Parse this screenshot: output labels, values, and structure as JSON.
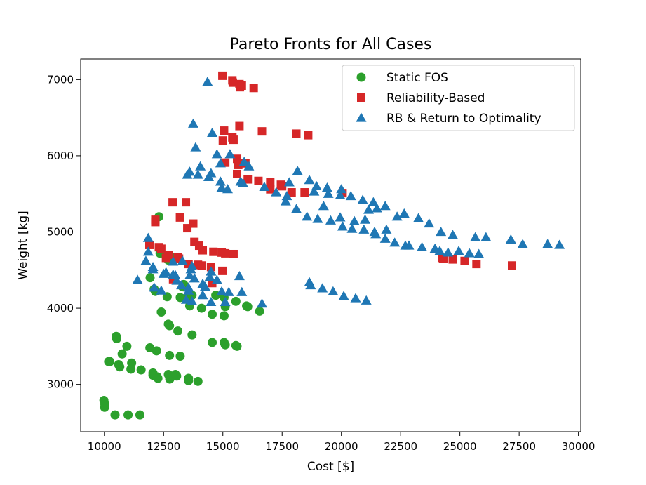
{
  "chart_data": {
    "type": "scatter",
    "title": "Pareto Fronts for All Cases",
    "xlabel": "Cost [$]",
    "ylabel": "Weight [kg]",
    "xlim": [
      9000,
      30100
    ],
    "ylim": [
      2380,
      7270
    ],
    "xticks": [
      10000,
      12500,
      15000,
      17500,
      20000,
      22500,
      25000,
      27500,
      30000
    ],
    "yticks": [
      3000,
      4000,
      5000,
      6000,
      7000
    ],
    "grid": false,
    "legend_position": "top-right",
    "series": [
      {
        "name": "Static FOS",
        "marker": "circle",
        "color": "#2ca02c",
        "points": [
          [
            9980,
            2790
          ],
          [
            10010,
            2700
          ],
          [
            10020,
            2740
          ],
          [
            10450,
            2600
          ],
          [
            11000,
            2600
          ],
          [
            11500,
            2600
          ],
          [
            10500,
            3630
          ],
          [
            10520,
            3600
          ],
          [
            10950,
            3500
          ],
          [
            10230,
            3300
          ],
          [
            10180,
            3300
          ],
          [
            10600,
            3260
          ],
          [
            10650,
            3230
          ],
          [
            10750,
            3400
          ],
          [
            11150,
            3280
          ],
          [
            11120,
            3200
          ],
          [
            11550,
            3190
          ],
          [
            11920,
            3480
          ],
          [
            12050,
            3120
          ],
          [
            12050,
            3150
          ],
          [
            12230,
            3100
          ],
          [
            12260,
            3080
          ],
          [
            12200,
            3440
          ],
          [
            12700,
            3130
          ],
          [
            12750,
            3380
          ],
          [
            12800,
            3100
          ],
          [
            12760,
            3070
          ],
          [
            13000,
            3130
          ],
          [
            13050,
            3110
          ],
          [
            13200,
            3370
          ],
          [
            13550,
            3080
          ],
          [
            13550,
            3050
          ],
          [
            13950,
            3040
          ],
          [
            12400,
            3950
          ],
          [
            12700,
            3790
          ],
          [
            12750,
            3770
          ],
          [
            13100,
            3700
          ],
          [
            13700,
            3650
          ],
          [
            11930,
            4400
          ],
          [
            12100,
            4250
          ],
          [
            12150,
            4220
          ],
          [
            12650,
            4150
          ],
          [
            12350,
            4720
          ],
          [
            12650,
            4650
          ],
          [
            12700,
            4630
          ],
          [
            12800,
            4680
          ],
          [
            13100,
            4660
          ],
          [
            13350,
            4310
          ],
          [
            13300,
            4280
          ],
          [
            13600,
            4030
          ],
          [
            13700,
            4170
          ],
          [
            13200,
            4140
          ],
          [
            13450,
            4130
          ],
          [
            14100,
            4000
          ],
          [
            14550,
            3920
          ],
          [
            15050,
            3900
          ],
          [
            14700,
            4170
          ],
          [
            15050,
            4140
          ],
          [
            15100,
            4020
          ],
          [
            15550,
            4090
          ],
          [
            16000,
            4030
          ],
          [
            16050,
            4020
          ],
          [
            16550,
            3960
          ],
          [
            14550,
            3550
          ],
          [
            15050,
            3550
          ],
          [
            15100,
            3520
          ],
          [
            15550,
            3510
          ],
          [
            15600,
            3500
          ],
          [
            12300,
            5200
          ]
        ]
      },
      {
        "name": "Reliability-Based",
        "marker": "square",
        "color": "#d62728",
        "points": [
          [
            14980,
            7050
          ],
          [
            15400,
            6990
          ],
          [
            15420,
            6960
          ],
          [
            15700,
            6940
          ],
          [
            15720,
            6900
          ],
          [
            15800,
            6920
          ],
          [
            16300,
            6890
          ],
          [
            15700,
            6390
          ],
          [
            15050,
            6330
          ],
          [
            15000,
            6200
          ],
          [
            15400,
            6240
          ],
          [
            15450,
            6210
          ],
          [
            16650,
            6320
          ],
          [
            18100,
            6290
          ],
          [
            18600,
            6270
          ],
          [
            15100,
            5910
          ],
          [
            15600,
            5960
          ],
          [
            15650,
            5880
          ],
          [
            15950,
            5900
          ],
          [
            16050,
            5690
          ],
          [
            15600,
            5760
          ],
          [
            16500,
            5670
          ],
          [
            17000,
            5650
          ],
          [
            17450,
            5620
          ],
          [
            17500,
            5600
          ],
          [
            17000,
            5560
          ],
          [
            17900,
            5520
          ],
          [
            18450,
            5520
          ],
          [
            20050,
            5510
          ],
          [
            12150,
            5130
          ],
          [
            12150,
            5160
          ],
          [
            12880,
            5390
          ],
          [
            13440,
            5390
          ],
          [
            13190,
            5190
          ],
          [
            13500,
            5050
          ],
          [
            13750,
            5110
          ],
          [
            13800,
            4870
          ],
          [
            14000,
            4820
          ],
          [
            14150,
            4760
          ],
          [
            14600,
            4740
          ],
          [
            14950,
            4730
          ],
          [
            15100,
            4720
          ],
          [
            15450,
            4710
          ],
          [
            11900,
            4830
          ],
          [
            12300,
            4800
          ],
          [
            12400,
            4780
          ],
          [
            12700,
            4700
          ],
          [
            12600,
            4660
          ],
          [
            13100,
            4670
          ],
          [
            13150,
            4650
          ],
          [
            13550,
            4580
          ],
          [
            13950,
            4570
          ],
          [
            14100,
            4560
          ],
          [
            14500,
            4540
          ],
          [
            14980,
            4490
          ],
          [
            14550,
            4330
          ],
          [
            12900,
            4380
          ],
          [
            24250,
            4660
          ],
          [
            24300,
            4650
          ],
          [
            24700,
            4640
          ],
          [
            25200,
            4620
          ],
          [
            25700,
            4580
          ],
          [
            27200,
            4560
          ]
        ]
      },
      {
        "name": "RB & Return to Optimality",
        "marker": "triangle",
        "color": "#1f77b4",
        "points": [
          [
            14350,
            6970
          ],
          [
            13750,
            6420
          ],
          [
            14550,
            6300
          ],
          [
            13850,
            6110
          ],
          [
            14750,
            6020
          ],
          [
            15300,
            6020
          ],
          [
            14900,
            5900
          ],
          [
            15900,
            5920
          ],
          [
            16100,
            5860
          ],
          [
            14050,
            5860
          ],
          [
            13600,
            5790
          ],
          [
            13500,
            5750
          ],
          [
            13950,
            5750
          ],
          [
            14400,
            5720
          ],
          [
            14500,
            5770
          ],
          [
            14900,
            5660
          ],
          [
            14950,
            5580
          ],
          [
            15200,
            5560
          ],
          [
            15750,
            5660
          ],
          [
            15850,
            5640
          ],
          [
            16750,
            5590
          ],
          [
            17250,
            5520
          ],
          [
            17700,
            5470
          ],
          [
            17800,
            5650
          ],
          [
            18150,
            5800
          ],
          [
            18650,
            5680
          ],
          [
            18950,
            5600
          ],
          [
            18850,
            5530
          ],
          [
            19400,
            5580
          ],
          [
            19450,
            5500
          ],
          [
            19950,
            5480
          ],
          [
            20000,
            5560
          ],
          [
            20400,
            5470
          ],
          [
            20900,
            5420
          ],
          [
            21350,
            5390
          ],
          [
            21500,
            5310
          ],
          [
            21850,
            5340
          ],
          [
            22350,
            5200
          ],
          [
            22650,
            5240
          ],
          [
            23250,
            5180
          ],
          [
            23700,
            5110
          ],
          [
            24200,
            5000
          ],
          [
            24700,
            4960
          ],
          [
            25650,
            4930
          ],
          [
            26100,
            4930
          ],
          [
            27150,
            4900
          ],
          [
            27650,
            4840
          ],
          [
            28700,
            4840
          ],
          [
            29200,
            4830
          ],
          [
            17650,
            5400
          ],
          [
            18100,
            5300
          ],
          [
            18550,
            5200
          ],
          [
            19000,
            5170
          ],
          [
            19250,
            5340
          ],
          [
            19550,
            5150
          ],
          [
            19950,
            5190
          ],
          [
            20050,
            5070
          ],
          [
            20550,
            5140
          ],
          [
            20450,
            5040
          ],
          [
            20950,
            5030
          ],
          [
            21000,
            5160
          ],
          [
            21150,
            5290
          ],
          [
            21400,
            5000
          ],
          [
            21450,
            4970
          ],
          [
            21900,
            5030
          ],
          [
            21850,
            4910
          ],
          [
            22250,
            4860
          ],
          [
            22700,
            4820
          ],
          [
            22850,
            4820
          ],
          [
            23400,
            4800
          ],
          [
            23950,
            4780
          ],
          [
            24150,
            4750
          ],
          [
            24500,
            4730
          ],
          [
            24950,
            4750
          ],
          [
            25400,
            4720
          ],
          [
            25800,
            4710
          ],
          [
            18650,
            4340
          ],
          [
            18700,
            4300
          ],
          [
            19200,
            4260
          ],
          [
            19650,
            4220
          ],
          [
            20100,
            4160
          ],
          [
            20600,
            4130
          ],
          [
            21050,
            4100
          ],
          [
            11400,
            4370
          ],
          [
            11850,
            4740
          ],
          [
            11750,
            4620
          ],
          [
            11850,
            4920
          ],
          [
            12050,
            4510
          ],
          [
            12050,
            4540
          ],
          [
            12100,
            4270
          ],
          [
            12500,
            4450
          ],
          [
            12600,
            4470
          ],
          [
            12900,
            4440
          ],
          [
            13000,
            4430
          ],
          [
            13050,
            4360
          ],
          [
            13250,
            4300
          ],
          [
            13550,
            4270
          ],
          [
            13550,
            4230
          ],
          [
            13600,
            4430
          ],
          [
            13650,
            4510
          ],
          [
            13700,
            4550
          ],
          [
            13800,
            4390
          ],
          [
            14150,
            4320
          ],
          [
            14250,
            4280
          ],
          [
            14450,
            4410
          ],
          [
            14500,
            4480
          ],
          [
            14750,
            4370
          ],
          [
            14150,
            4170
          ],
          [
            14500,
            4080
          ],
          [
            14950,
            4220
          ],
          [
            15250,
            4210
          ],
          [
            15700,
            4420
          ],
          [
            15800,
            4210
          ],
          [
            15100,
            4080
          ],
          [
            16650,
            4060
          ],
          [
            12400,
            4230
          ],
          [
            12900,
            4610
          ],
          [
            13300,
            4620
          ],
          [
            13450,
            4110
          ],
          [
            13700,
            4090
          ]
        ]
      }
    ]
  }
}
